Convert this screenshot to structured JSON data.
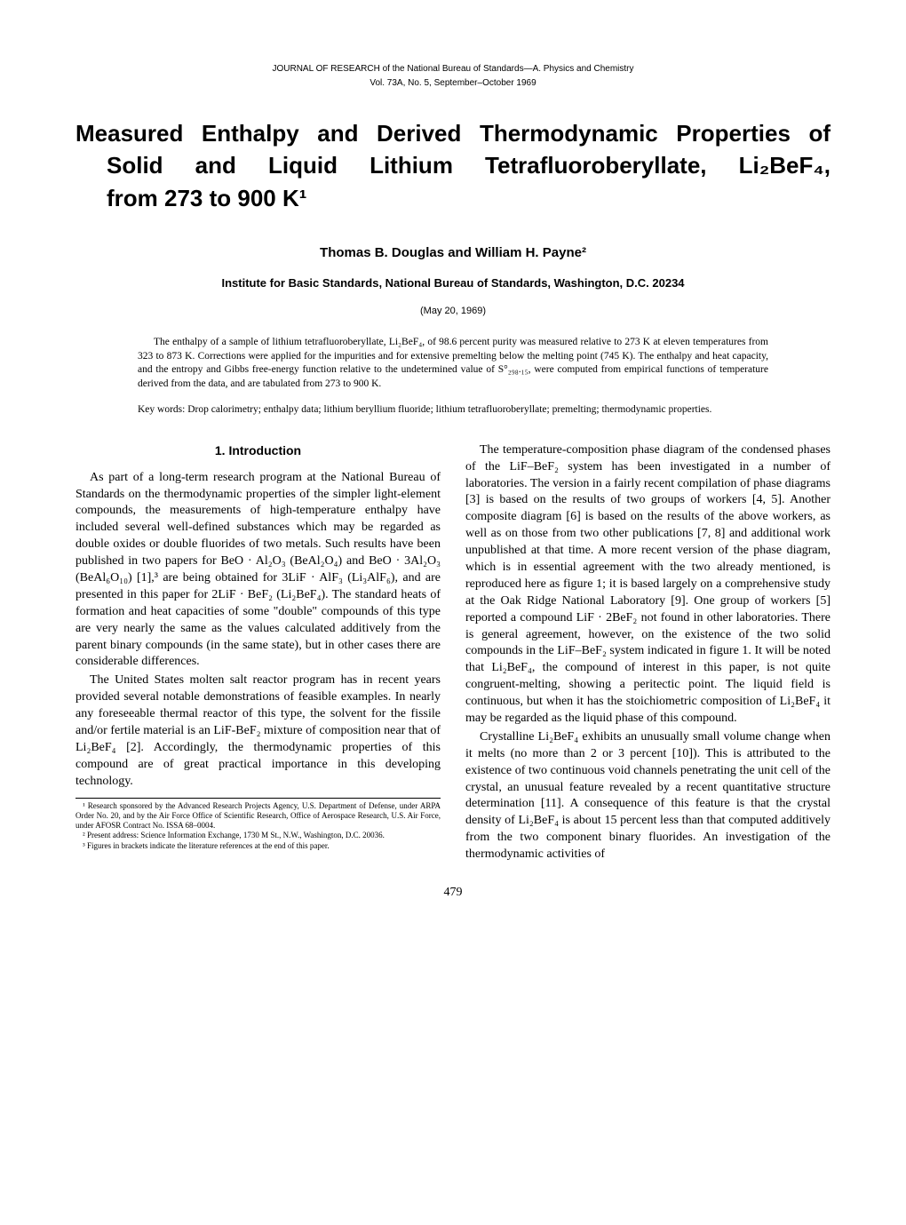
{
  "journal": {
    "line1": "JOURNAL OF RESEARCH of the National Bureau of Standards—A. Physics and Chemistry",
    "line2": "Vol. 73A, No. 5, September–October 1969"
  },
  "title": {
    "line1": "Measured Enthalpy and Derived Thermodynamic Properties of",
    "line2": "Solid and Liquid Lithium Tetrafluoroberyllate, Li₂BeF₄,",
    "line3": "from 273 to 900 K¹"
  },
  "authors": "Thomas B. Douglas and William H. Payne²",
  "institute": "Institute for Basic Standards, National Bureau of Standards, Washington, D.C. 20234",
  "date": "(May 20, 1969)",
  "abstract": "The enthalpy of a sample of lithium tetrafluoroberyllate, Li₂BeF₄, of 98.6 percent purity was measured relative to 273 K at eleven temperatures from 323 to 873 K. Corrections were applied for the impurities and for extensive premelting below the melting point (745 K). The enthalpy and heat capacity, and the entropy and Gibbs free-energy function relative to the undetermined value of S°₂₉₈.₁₅, were computed from empirical functions of temperature derived from the data, and are tabulated from 273 to 900 K.",
  "keywords": "Key words: Drop calorimetry; enthalpy data; lithium beryllium fluoride; lithium tetrafluoroberyllate; premelting; thermodynamic properties.",
  "section_heading": "1. Introduction",
  "paragraphs": {
    "p1": "As part of a long-term research program at the National Bureau of Standards on the thermodynamic properties of the simpler light-element compounds, the measurements of high-temperature enthalpy have included several well-defined substances which may be regarded as double oxides or double fluorides of two metals. Such results have been published in two papers for BeO · Al₂O₃ (BeAl₂O₄) and BeO · 3Al₂O₃ (BeAl₆O₁₀) [1],³ are being obtained for 3LiF · AlF₃ (Li₃AlF₆), and are presented in this paper for 2LiF · BeF₂ (Li₂BeF₄). The standard heats of formation and heat capacities of some \"double\" compounds of this type are very nearly the same as the values calculated additively from the parent binary compounds (in the same state), but in other cases there are considerable differences.",
    "p2": "The United States molten salt reactor program has in recent years provided several notable demonstrations of feasible examples. In nearly any foreseeable thermal reactor of this type, the solvent for the fissile and/or fertile material is an LiF-BeF₂ mixture of composition near that of Li₂BeF₄ [2]. Accordingly, the thermodynamic properties of this compound are of great practical importance in this developing technology.",
    "p3": "The temperature-composition phase diagram of the condensed phases of the LiF–BeF₂ system has been investigated in a number of laboratories. The version in a fairly recent compilation of phase diagrams [3] is based on the results of two groups of workers [4, 5]. Another composite diagram [6] is based on the results of the above workers, as well as on those from two other publications [7, 8] and additional work unpublished at that time. A more recent version of the phase diagram, which is in essential agreement with the two already mentioned, is reproduced here as figure 1; it is based largely on a comprehensive study at the Oak Ridge National Laboratory [9]. One group of workers [5] reported a compound LiF · 2BeF₂ not found in other laboratories. There is general agreement, however, on the existence of the two solid compounds in the LiF–BeF₂ system indicated in figure 1. It will be noted that Li₂BeF₄, the compound of interest in this paper, is not quite congruent-melting, showing a peritectic point. The liquid field is continuous, but when it has the stoichiometric composition of Li₂BeF₄ it may be regarded as the liquid phase of this compound.",
    "p4": "Crystalline Li₂BeF₄ exhibits an unusually small volume change when it melts (no more than 2 or 3 percent [10]). This is attributed to the existence of two continuous void channels penetrating the unit cell of the crystal, an unusual feature revealed by a recent quantitative structure determination [11]. A consequence of this feature is that the crystal density of Li₂BeF₄ is about 15 percent less than that computed additively from the two component binary fluorides. An investigation of the thermodynamic activities of"
  },
  "footnotes": {
    "f1": "¹ Research sponsored by the Advanced Research Projects Agency, U.S. Department of Defense, under ARPA Order No. 20, and by the Air Force Office of Scientific Research, Office of Aerospace Research, U.S. Air Force, under AFOSR Contract No. ISSA 68–0004.",
    "f2": "² Present address: Science Information Exchange, 1730 M St., N.W., Washington, D.C. 20036.",
    "f3": "³ Figures in brackets indicate the literature references at the end of this paper."
  },
  "page_number": "479"
}
